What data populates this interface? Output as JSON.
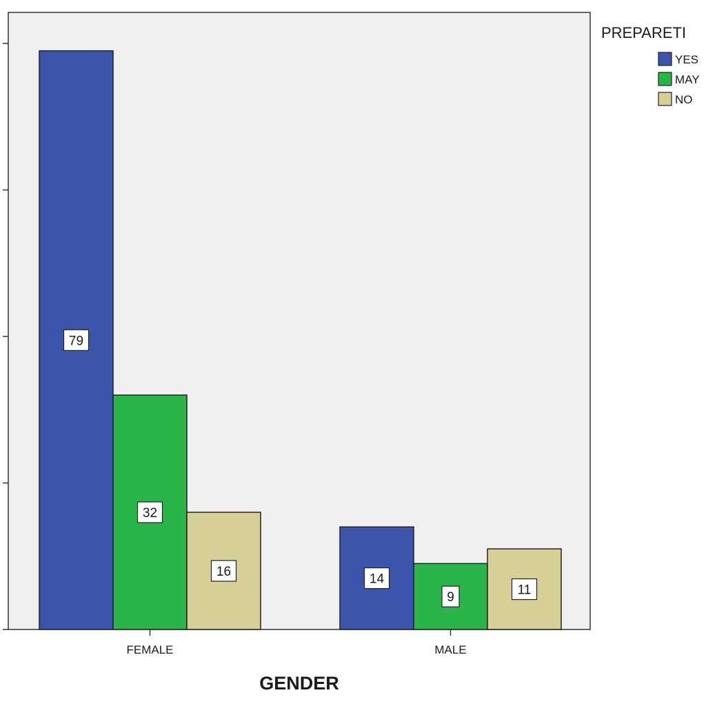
{
  "chart_data": {
    "type": "bar",
    "title": "",
    "xlabel": "GENDER",
    "ylabel": "",
    "categories": [
      "FEMALE",
      "MALE"
    ],
    "legend": {
      "title": "PREPARETI",
      "placement": "right"
    },
    "series": [
      {
        "name": "YES",
        "values": [
          79,
          14
        ],
        "color": "#3b55ad"
      },
      {
        "name": "MAY",
        "values": [
          32,
          9
        ],
        "color": "#2ab54a"
      },
      {
        "name": "NO",
        "values": [
          16,
          11
        ],
        "color": "#d6cf97"
      }
    ],
    "ylim": [
      0,
      80
    ],
    "yticks": [
      0,
      20,
      40,
      60,
      80
    ],
    "ytick_labels_visible": false,
    "grid": false,
    "plot_background": "#f0f0f0"
  }
}
